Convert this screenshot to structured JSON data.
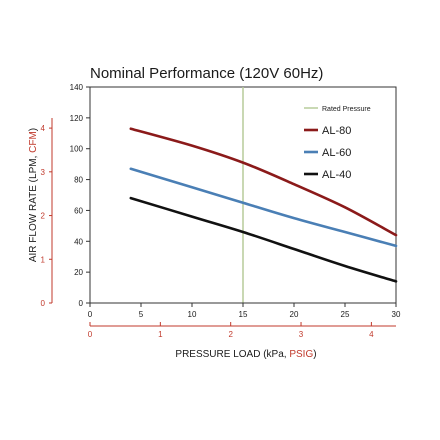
{
  "chart_data": {
    "type": "line",
    "title": "Nominal Performance (120V 60Hz)",
    "xlabel": {
      "prefix": "PRESSURE LOAD (kPa, ",
      "highlight": "PSIG",
      "suffix": ")"
    },
    "ylabel": {
      "prefix": "AIR FLOW RATE (LPM, ",
      "highlight": "CFM",
      "suffix": ")"
    },
    "x_primary": {
      "unit": "kPa",
      "ticks": [
        "0",
        "5",
        "10",
        "15",
        "20",
        "25",
        "30"
      ],
      "range": [
        0,
        30
      ]
    },
    "x_secondary": {
      "unit": "PSIG",
      "ticks": [
        "0",
        "1",
        "2",
        "3",
        "4"
      ],
      "range": [
        0,
        4.35
      ]
    },
    "y_primary": {
      "unit": "LPM",
      "ticks": [
        "0",
        "20",
        "40",
        "60",
        "80",
        "100",
        "120",
        "140"
      ],
      "range": [
        0,
        140
      ]
    },
    "y_secondary": {
      "unit": "CFM",
      "ticks": [
        "0",
        "1",
        "2",
        "3",
        "4"
      ],
      "range": [
        0,
        4.94
      ]
    },
    "reference_line": {
      "name": "Rated Pressure",
      "x": 15,
      "color": "#b7cc9a"
    },
    "series": [
      {
        "name": "AL-80",
        "color": "#8b1a1a",
        "x": [
          4,
          10,
          15,
          20,
          25,
          30
        ],
        "y": [
          113,
          102,
          91,
          77,
          62,
          44
        ]
      },
      {
        "name": "AL-60",
        "color": "#4a7fb5",
        "x": [
          4,
          10,
          15,
          20,
          25,
          30
        ],
        "y": [
          87,
          75,
          65,
          55,
          46,
          37
        ]
      },
      {
        "name": "AL-40",
        "color": "#111111",
        "x": [
          4,
          10,
          15,
          20,
          25,
          30
        ],
        "y": [
          68,
          56,
          46,
          35,
          24,
          14
        ]
      }
    ],
    "grid": false,
    "legend": "top-right"
  }
}
